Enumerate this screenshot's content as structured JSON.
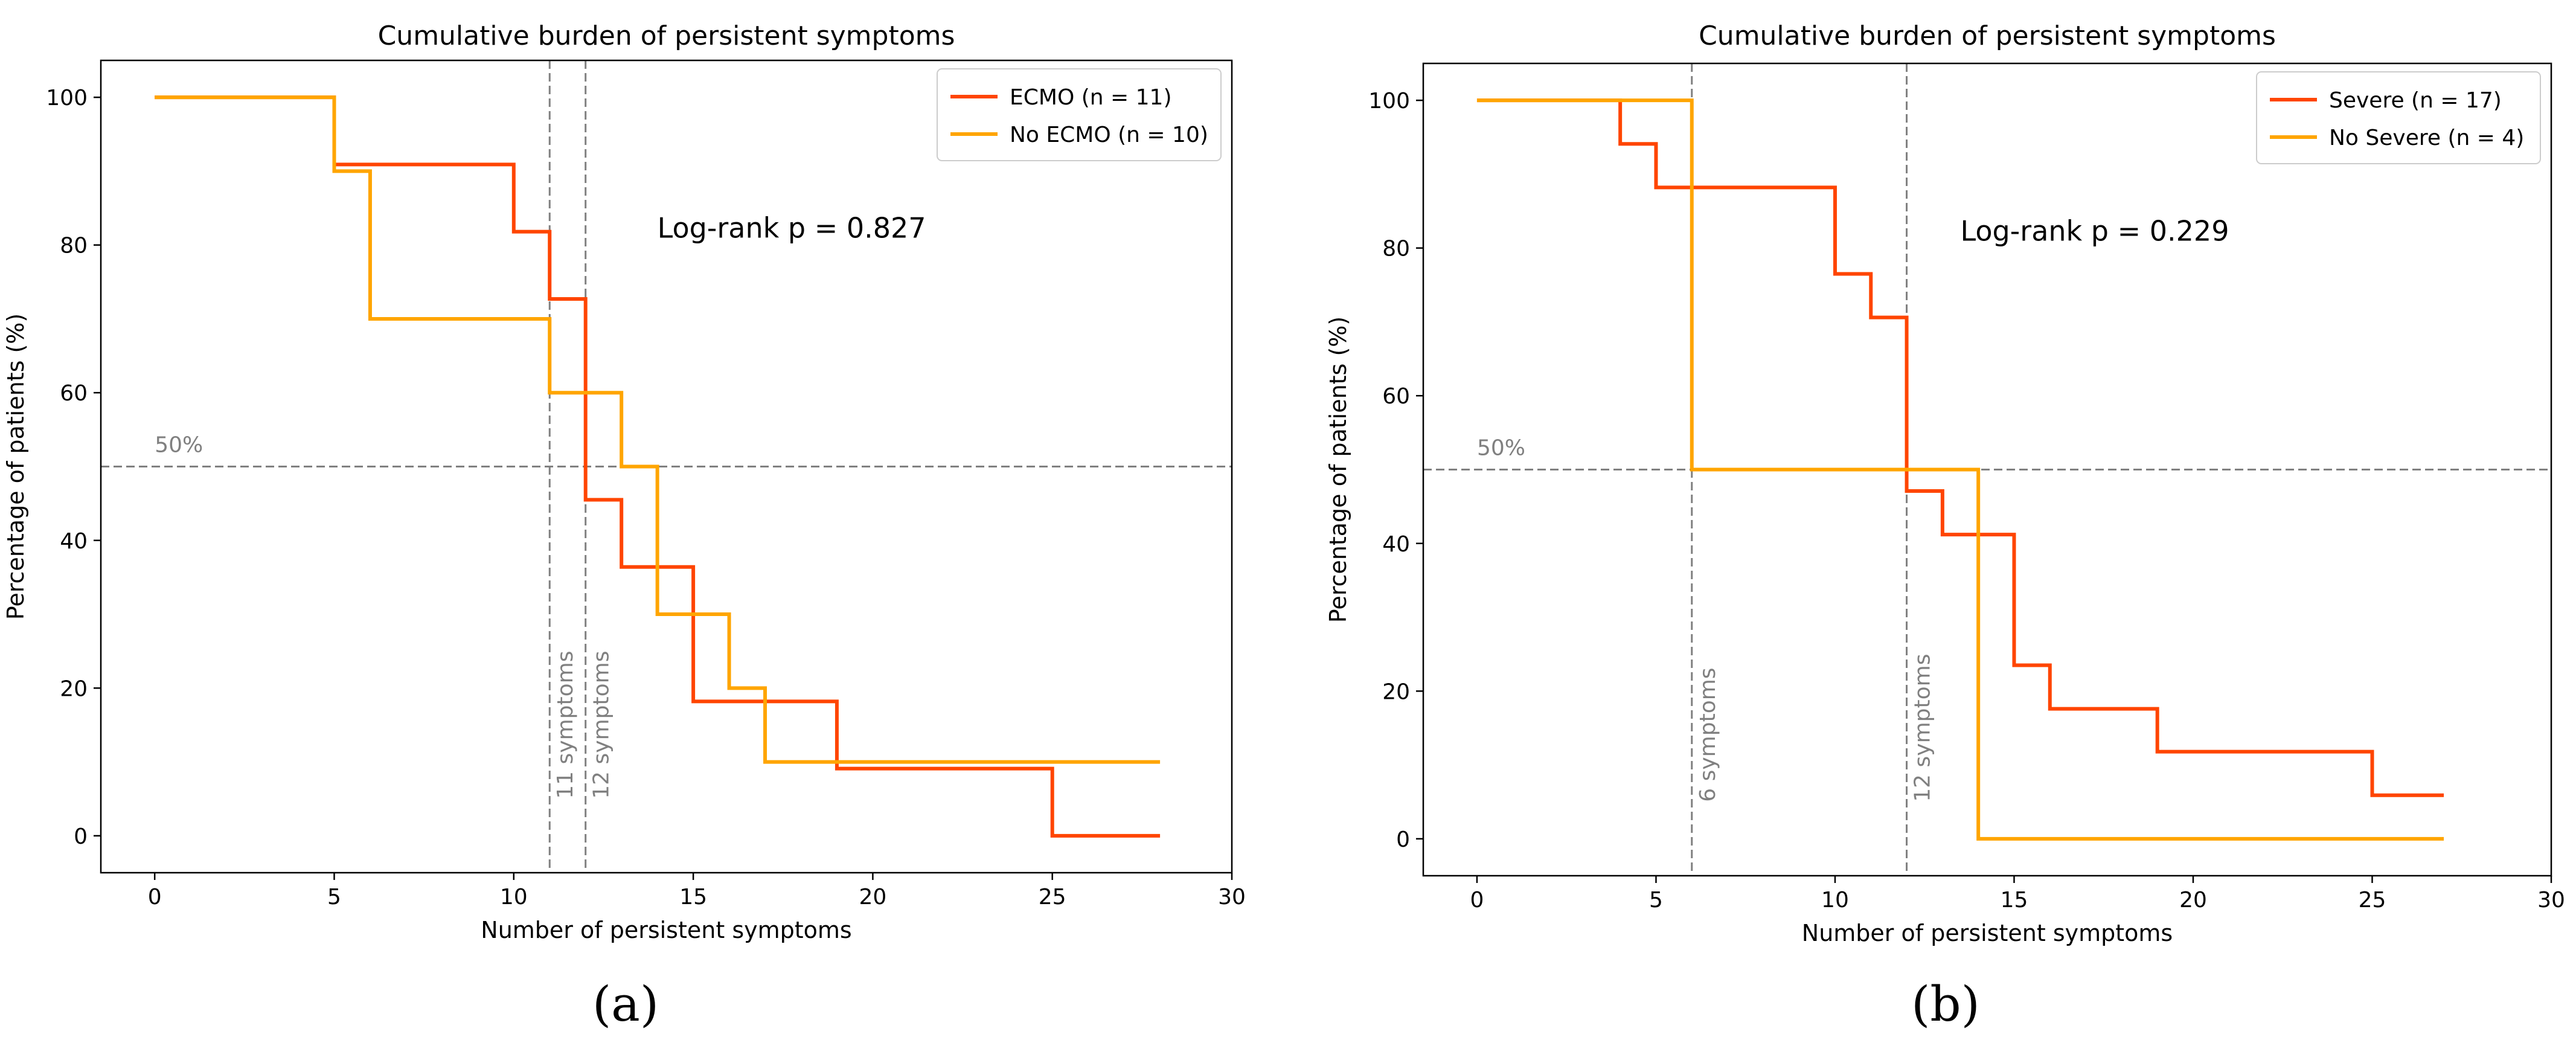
{
  "chart_data": [
    {
      "type": "step-line",
      "panel_label": "(a)",
      "title": "Cumulative burden of persistent symptoms",
      "xlabel": "Number of persistent symptoms",
      "ylabel": "Percentage of patients (%)",
      "xlim": [
        -1.5,
        30
      ],
      "ylim": [
        -5,
        105
      ],
      "xticks": [
        0,
        5,
        10,
        15,
        20,
        25,
        30
      ],
      "yticks": [
        0,
        20,
        40,
        60,
        80,
        100
      ],
      "grid": false,
      "legend_position": "top-right",
      "series": [
        {
          "name": "ECMO (n = 11)",
          "color": "#ff4500",
          "x": [
            0,
            5,
            10,
            11,
            12,
            13,
            15,
            19,
            25,
            28
          ],
          "y": [
            100,
            90.9,
            81.8,
            72.7,
            45.5,
            36.4,
            18.2,
            9.1,
            0,
            0
          ]
        },
        {
          "name": "No ECMO (n = 10)",
          "color": "#ffa500",
          "x": [
            0,
            5,
            6,
            11,
            13,
            14,
            16,
            17,
            28
          ],
          "y": [
            100,
            90,
            70,
            60,
            50,
            30,
            20,
            10,
            10
          ]
        }
      ],
      "hline": {
        "y": 50,
        "label": "50%"
      },
      "vlines": [
        {
          "x": 11,
          "label": "11 symptoms"
        },
        {
          "x": 12,
          "label": "12 symptoms"
        }
      ],
      "annotation": {
        "text": "Log-rank p = 0.827",
        "x": 14,
        "y": 81
      }
    },
    {
      "type": "step-line",
      "panel_label": "(b)",
      "title": "Cumulative burden of persistent symptoms",
      "xlabel": "Number of persistent symptoms",
      "ylabel": "Percentage of patients (%)",
      "xlim": [
        -1.5,
        30
      ],
      "ylim": [
        -5,
        105
      ],
      "xticks": [
        0,
        5,
        10,
        15,
        20,
        25,
        30
      ],
      "yticks": [
        0,
        20,
        40,
        60,
        80,
        100
      ],
      "grid": false,
      "legend_position": "top-right",
      "series": [
        {
          "name": "Severe (n = 17)",
          "color": "#ff4500",
          "x": [
            0,
            4,
            5,
            10,
            11,
            12,
            13,
            15,
            16,
            19,
            25,
            27
          ],
          "y": [
            100,
            94.1,
            88.2,
            76.5,
            70.6,
            47.1,
            41.2,
            23.5,
            17.6,
            11.8,
            5.9,
            5.9
          ]
        },
        {
          "name": "No Severe (n = 4)",
          "color": "#ffa500",
          "x": [
            0,
            6,
            14,
            27
          ],
          "y": [
            100,
            50,
            0,
            0
          ]
        }
      ],
      "hline": {
        "y": 50,
        "label": "50%"
      },
      "vlines": [
        {
          "x": 6,
          "label": "6 symptoms"
        },
        {
          "x": 12,
          "label": "12 symptoms"
        }
      ],
      "annotation": {
        "text": "Log-rank p = 0.229",
        "x": 13.5,
        "y": 81
      }
    }
  ]
}
